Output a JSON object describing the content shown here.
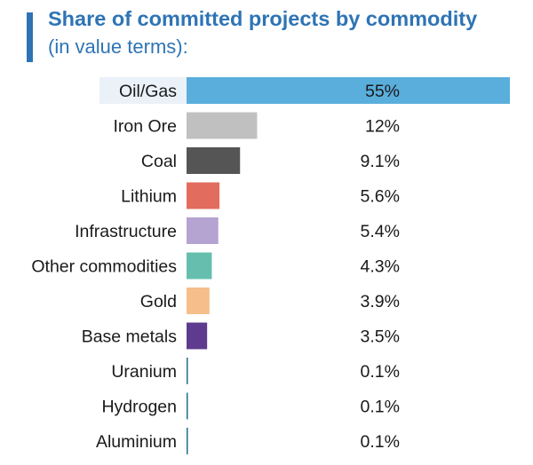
{
  "header": {
    "title": "Share of committed projects by commodity",
    "subtitle": "(in value terms):"
  },
  "chart_data": {
    "type": "bar",
    "orientation": "horizontal",
    "title": "Share of committed projects by commodity",
    "subtitle": "(in value terms):",
    "categories": [
      "Oil/Gas",
      "Iron Ore",
      "Coal",
      "Lithium",
      "Infrastructure",
      "Other commodities",
      "Gold",
      "Base metals",
      "Uranium",
      "Hydrogen",
      "Aluminium"
    ],
    "values": [
      55,
      12,
      9.1,
      5.6,
      5.4,
      4.3,
      3.9,
      3.5,
      0.1,
      0.1,
      0.1
    ],
    "value_labels": [
      "55%",
      "12%",
      "9.1%",
      "5.6%",
      "5.4%",
      "4.3%",
      "3.9%",
      "3.5%",
      "0.1%",
      "0.1%",
      "0.1%"
    ],
    "colors": [
      "#5aaedc",
      "#c0c0c0",
      "#555555",
      "#e26c5d",
      "#b5a3d2",
      "#66bfae",
      "#f5be8a",
      "#5e3b8e",
      "#1f6f8b",
      "#1f6f8b",
      "#1f6f8b"
    ],
    "xlim": [
      0,
      55
    ],
    "unit": "%",
    "grid": false,
    "legend": "none"
  }
}
